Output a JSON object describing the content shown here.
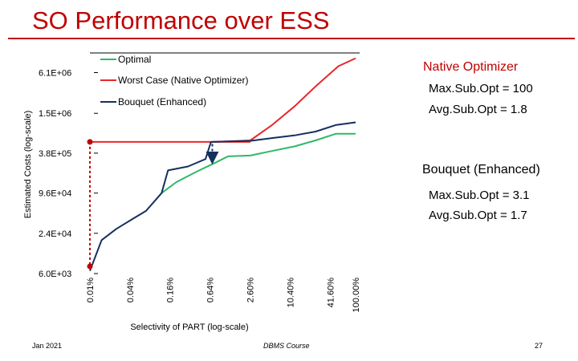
{
  "slide": {
    "title": "SO Performance over ESS",
    "footer_left": "Jan 2021",
    "footer_center": "DBMS Course",
    "page_number": "27"
  },
  "colors": {
    "title": "#c00000",
    "optimal": "#2fb866",
    "worst": "#e8272a",
    "bouquet": "#14305e",
    "threshold": "#e8272a",
    "drop_red": "#c00000",
    "drop_blue": "#14305e"
  },
  "annotations": {
    "native": {
      "heading": "Native Optimizer",
      "max": "Max.Sub.Opt = 100",
      "avg": "Avg.Sub.Opt = 1.8"
    },
    "bouquet": {
      "heading": "Bouquet (Enhanced)",
      "max": "Max.Sub.Opt = 3.1",
      "avg": "Avg.Sub.Opt = 1.7"
    }
  },
  "chart_data": {
    "type": "line",
    "title": "",
    "xlabel": "Selectivity of PART (log-scale)",
    "ylabel": "Estimated Costs (log-scale)",
    "x_scale": "log",
    "y_scale": "log",
    "x_ticks": [
      0.01,
      0.04,
      0.16,
      0.64,
      2.56,
      10.4,
      41.6,
      100
    ],
    "x_tick_labels": [
      "0.01%",
      "0.04%",
      "0.16%",
      "0.64%",
      "2.60%",
      "10.40%",
      "41.60%",
      "100.00%"
    ],
    "y_ticks": [
      6000,
      24000,
      96000,
      380000,
      1500000,
      6100000
    ],
    "y_tick_labels": [
      "6.0E+03",
      "2.4E+04",
      "9.6E+04",
      "3.8E+05",
      "1.5E+06",
      "6.1E+06"
    ],
    "xlim": [
      0.01,
      100
    ],
    "ylim": [
      6000,
      12000000
    ],
    "legend": {
      "placement": "top-left",
      "entries": [
        "Optimal",
        "Worst Case (Native Optimizer)",
        "Bouquet (Enhanced)"
      ]
    },
    "series": [
      {
        "name": "Optimal",
        "color_key": "optimal",
        "x": [
          0.12,
          0.2,
          0.4,
          0.75,
          1.2,
          2.6,
          5.5,
          12,
          25,
          50,
          100
        ],
        "y": [
          96000,
          140000,
          200000,
          270000,
          340000,
          350000,
          410000,
          480000,
          590000,
          740000,
          740000
        ]
      },
      {
        "name": "Worst Case (Native Optimizer)",
        "color_key": "worst",
        "x": [
          0.66,
          1.2,
          2.6,
          5.5,
          12,
          25,
          55,
          100
        ],
        "y": [
          560000,
          570000,
          590000,
          1000000,
          1900000,
          3800000,
          7600000,
          10000000
        ],
        "threshold": {
          "x0": 0.01,
          "x1": 2.6,
          "y": 560000
        }
      },
      {
        "name": "Bouquet (Enhanced)",
        "color_key": "bouquet",
        "x": [
          0.01,
          0.015,
          0.025,
          0.045,
          0.07,
          0.12,
          0.15,
          0.3,
          0.55,
          0.66,
          0.7,
          1.2,
          2.6,
          5.5,
          12,
          25,
          50,
          100
        ],
        "y": [
          6600,
          19000,
          28000,
          40000,
          52000,
          96000,
          210000,
          240000,
          310000,
          550000,
          560000,
          570000,
          580000,
          640000,
          700000,
          800000,
          1000000,
          1100000
        ]
      }
    ],
    "arrows": [
      {
        "name": "worst-drop",
        "color_key": "drop_red",
        "x": 0.01,
        "y_from": 560000,
        "y_to": 7700
      },
      {
        "name": "bouquet-drop",
        "color_key": "drop_blue",
        "x": 0.64,
        "y_from": 550000,
        "y_to": 280000
      }
    ]
  }
}
